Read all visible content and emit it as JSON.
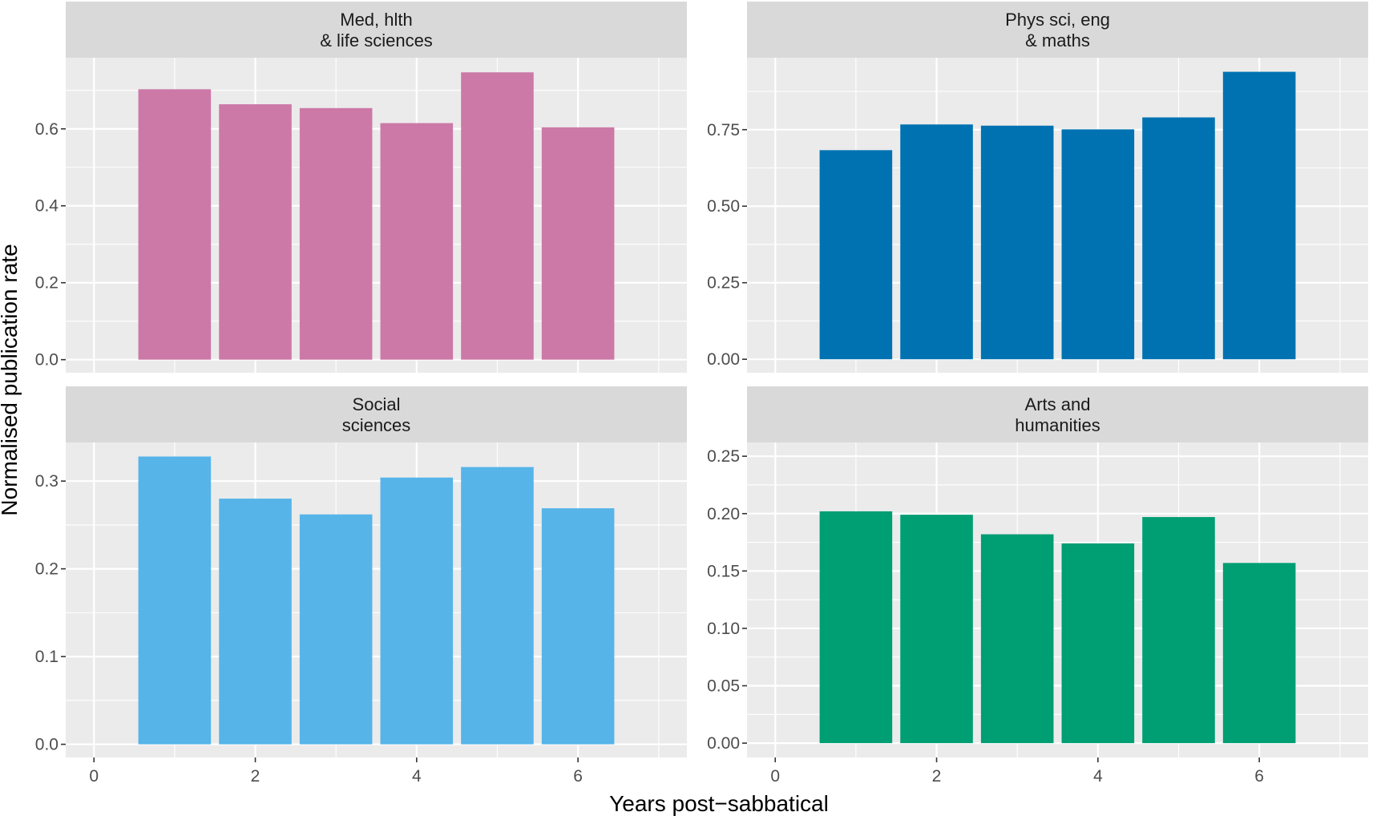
{
  "chart_data": {
    "type": "bar",
    "layout": "facet-grid-2x2",
    "xlabel": "Years post−sabbatical",
    "ylabel": "Normalised publication rate",
    "x_ticks": [
      "0",
      "2",
      "4",
      "6"
    ],
    "xlim": [
      -0.35,
      7.35
    ],
    "scales": "free_y",
    "panels": [
      {
        "strip": [
          "Med, hlth",
          "& life sciences"
        ],
        "color": "#CC79A7",
        "x": [
          1,
          2,
          3,
          4,
          5,
          6
        ],
        "values": [
          0.703,
          0.664,
          0.654,
          0.615,
          0.747,
          0.604
        ],
        "ylim": [
          -0.034,
          0.785
        ],
        "y_ticks": [
          "0.0",
          "0.2",
          "0.4",
          "0.6"
        ]
      },
      {
        "strip": [
          "Phys sci, eng",
          "& maths"
        ],
        "color": "#0072B2",
        "x": [
          1,
          2,
          3,
          4,
          5,
          6
        ],
        "values": [
          0.683,
          0.767,
          0.763,
          0.751,
          0.79,
          0.939
        ],
        "ylim": [
          -0.044,
          0.985
        ],
        "y_ticks": [
          "0.00",
          "0.25",
          "0.50",
          "0.75"
        ]
      },
      {
        "strip": [
          "Social",
          "sciences"
        ],
        "color": "#56B4E9",
        "x": [
          1,
          2,
          3,
          4,
          5,
          6
        ],
        "values": [
          0.328,
          0.28,
          0.262,
          0.304,
          0.316,
          0.269
        ],
        "ylim": [
          -0.015,
          0.344
        ],
        "y_ticks": [
          "0.0",
          "0.1",
          "0.2",
          "0.3"
        ]
      },
      {
        "strip": [
          "Arts and",
          "humanities"
        ],
        "color": "#009E73",
        "x": [
          1,
          2,
          3,
          4,
          5,
          6
        ],
        "values": [
          0.202,
          0.199,
          0.182,
          0.174,
          0.197,
          0.157
        ],
        "ylim": [
          -0.0125,
          0.262
        ],
        "y_ticks": [
          "0.00",
          "0.05",
          "0.10",
          "0.15",
          "0.20",
          "0.25"
        ]
      }
    ]
  }
}
